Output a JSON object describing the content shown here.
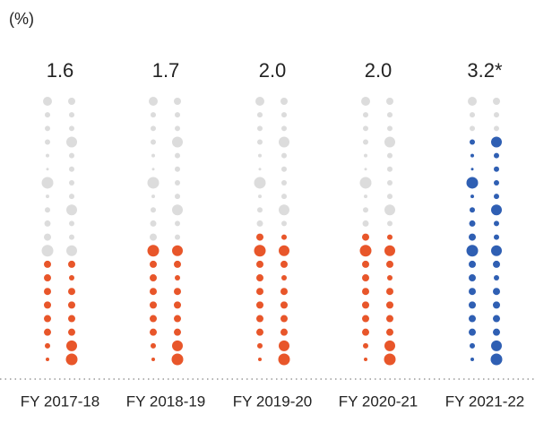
{
  "chart_data": {
    "type": "dot",
    "subtitle": "(%)",
    "categories": [
      "FY 2017-18",
      "FY 2018-19",
      "FY 2019-20",
      "FY 2020-21",
      "FY 2021-22"
    ],
    "values": [
      1.6,
      1.7,
      2.0,
      2.0,
      3.2
    ],
    "value_labels": [
      "1.6",
      "1.7",
      "2.0",
      "2.0",
      "3.2*"
    ],
    "colors": [
      "#e8562a",
      "#e8562a",
      "#e8562a",
      "#e8562a",
      "#2f5fb3"
    ],
    "ylim": [
      0,
      3.8
    ]
  }
}
